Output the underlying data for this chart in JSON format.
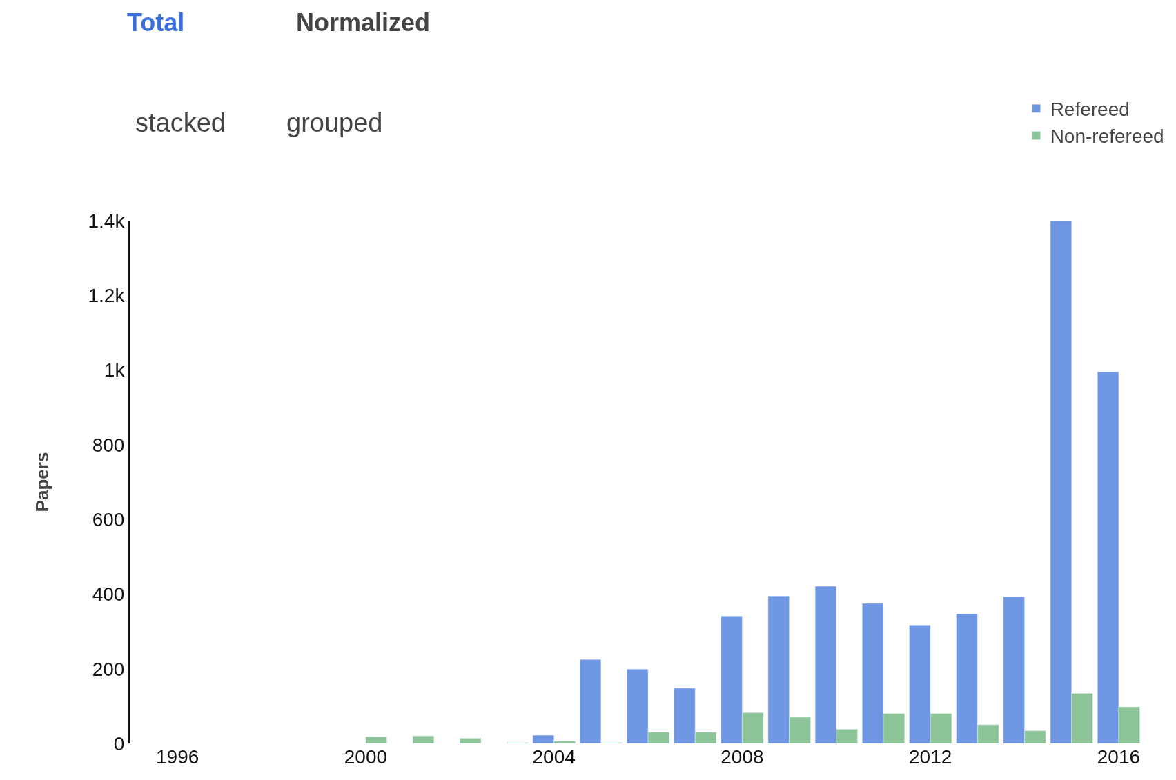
{
  "chart_data": {
    "type": "bar",
    "ylabel": "Papers",
    "annotations": [
      "Total",
      "Normalized",
      "stacked",
      "grouped"
    ],
    "x": [
      2000,
      2001,
      2002,
      2003,
      2004,
      2005,
      2006,
      2007,
      2008,
      2009,
      2010,
      2011,
      2012,
      2013,
      2014,
      2015,
      2016
    ],
    "series": [
      {
        "name": "Refereed",
        "color": "#6f96e3",
        "values": [
          null,
          null,
          null,
          null,
          22,
          225,
          199,
          148,
          341,
          395,
          421,
          375,
          317,
          347,
          393,
          1400,
          995
        ]
      },
      {
        "name": "Non-refereed",
        "color": "#8cc498",
        "values": [
          18,
          20,
          14,
          2,
          6,
          2,
          30,
          30,
          82,
          70,
          38,
          80,
          80,
          50,
          34,
          134,
          98
        ]
      }
    ],
    "xlim": [
      1995,
      2016.5
    ],
    "xticks": [
      1996,
      2000,
      2004,
      2008,
      2012,
      2016
    ],
    "ylim": [
      0,
      1400
    ],
    "yticks": [
      0,
      200,
      400,
      600,
      800,
      {
        "value": 1000,
        "label": "1k"
      },
      {
        "value": 1200,
        "label": "1.2k"
      },
      {
        "value": 1400,
        "label": "1.4k"
      }
    ],
    "legend": "top right"
  }
}
